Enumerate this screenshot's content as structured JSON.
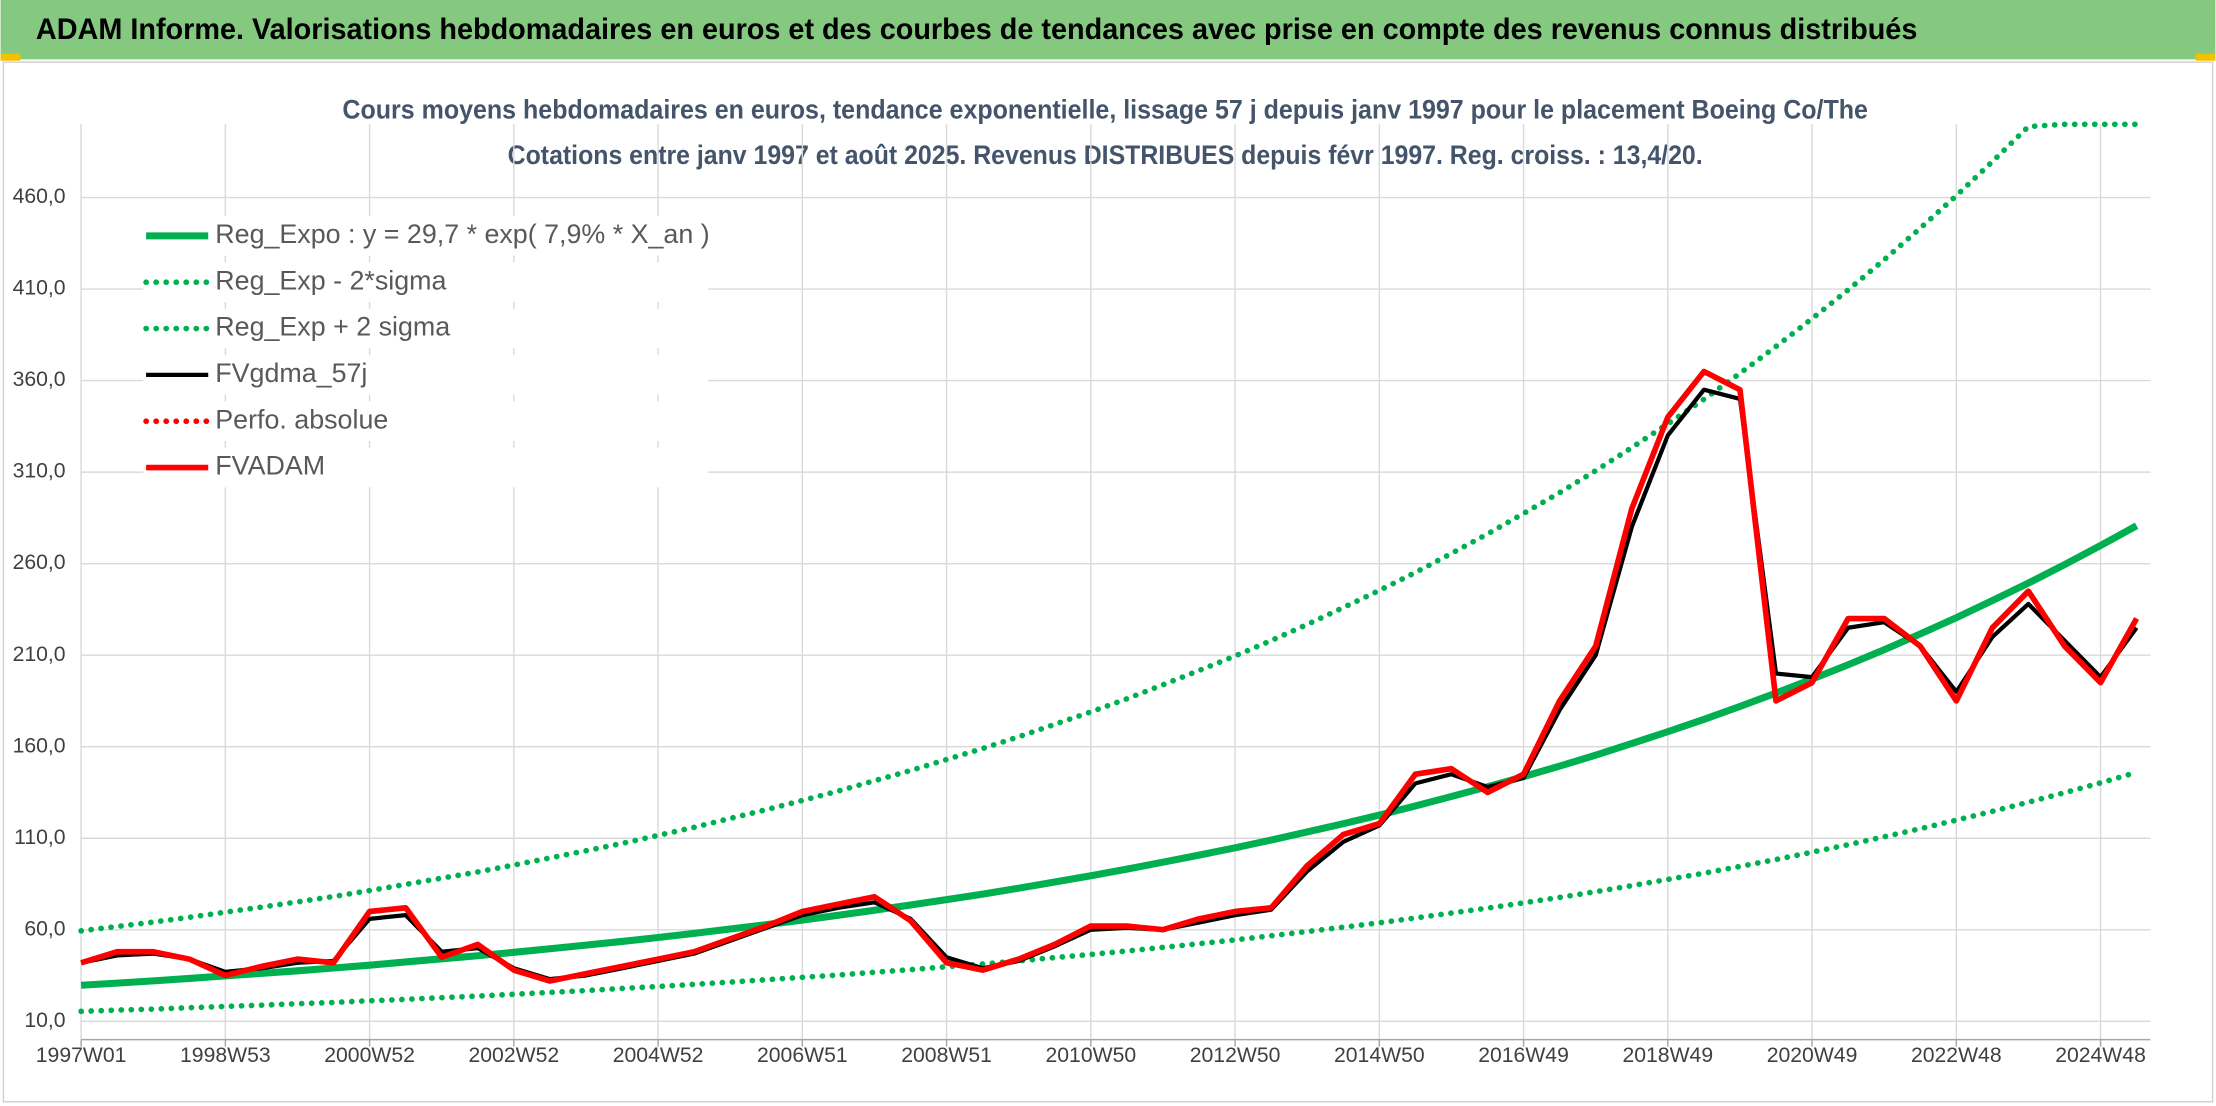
{
  "header": {
    "title": "ADAM Informe. Valorisations hebdomadaires en euros et des courbes de tendances avec prise en compte des revenus connus distribués"
  },
  "chart_data": {
    "type": "line",
    "title": "Cours moyens hebdomadaires en euros, tendance exponentielle, lissage 57 j depuis janv 1997 pour le placement Boeing Co/The",
    "subtitle": "Cotations entre janv 1997 et août 2025. Revenus DISTRIBUES depuis févr 1997. Reg. croiss. : 13,4/20.",
    "categories": [
      "1997W01",
      null,
      null,
      null,
      "1998W53",
      null,
      null,
      null,
      "2000W52",
      null,
      null,
      null,
      "2002W52",
      null,
      null,
      null,
      "2004W52",
      null,
      null,
      null,
      "2006W51",
      null,
      null,
      null,
      "2008W51",
      null,
      null,
      null,
      "2010W50",
      null,
      null,
      null,
      "2012W50",
      null,
      null,
      null,
      "2014W50",
      null,
      null,
      null,
      "2016W49",
      null,
      null,
      null,
      "2018W49",
      null,
      null,
      null,
      "2020W49",
      null,
      null,
      null,
      "2022W48",
      null,
      null,
      null,
      "2024W48",
      null
    ],
    "ylim": [
      0,
      500
    ],
    "yticks": [
      {
        "value": 10,
        "label": "10,0"
      },
      {
        "value": 60,
        "label": "60,0"
      },
      {
        "value": 110,
        "label": "110,0"
      },
      {
        "value": 160,
        "label": "160,0"
      },
      {
        "value": 210,
        "label": "210,0"
      },
      {
        "value": 260,
        "label": "260,0"
      },
      {
        "value": 310,
        "label": "310,0"
      },
      {
        "value": 360,
        "label": "360,0"
      },
      {
        "value": 410,
        "label": "410,0"
      },
      {
        "value": 460,
        "label": "460,0"
      }
    ],
    "grid": true,
    "legend": "upper-left",
    "series": [
      {
        "name": "Reg_Expo : y = 29,7 * exp( 7,9% *  X_an )",
        "color": "#00b050",
        "style": "solid",
        "values": [
          29.7,
          30.9,
          32.1,
          33.4,
          34.8,
          36.2,
          37.6,
          39.1,
          40.7,
          42.4,
          44.1,
          45.8,
          47.7,
          49.6,
          51.6,
          53.6,
          55.8,
          58.0,
          60.4,
          62.8,
          65.3,
          67.9,
          70.7,
          73.5,
          76.5,
          79.5,
          82.7,
          86.1,
          89.5,
          93.1,
          96.9,
          100.8,
          104.8,
          109.0,
          113.4,
          118.0,
          122.7,
          127.6,
          132.8,
          138.1,
          143.7,
          149.4,
          155.4,
          161.7,
          168.2,
          174.9,
          182.0,
          189.3,
          196.9,
          204.8,
          213.0,
          221.6,
          230.5,
          239.8,
          249.4,
          259.5,
          269.9,
          280.7
        ]
      },
      {
        "name": "Reg_Exp - 2*sigma",
        "color": "#00b050",
        "style": "dotted",
        "values": [
          15.4,
          16.1,
          16.7,
          17.4,
          18.1,
          18.8,
          19.6,
          20.3,
          21.2,
          22.0,
          22.9,
          23.8,
          24.8,
          25.8,
          26.8,
          27.9,
          29.0,
          30.2,
          31.4,
          32.7,
          34.0,
          35.3,
          36.8,
          38.2,
          39.8,
          41.3,
          43.0,
          44.8,
          46.5,
          48.4,
          50.4,
          52.4,
          54.5,
          56.7,
          59.0,
          61.4,
          63.8,
          66.4,
          69.1,
          71.8,
          74.7,
          77.7,
          80.8,
          84.1,
          87.5,
          90.9,
          94.6,
          98.4,
          102.4,
          106.5,
          110.8,
          115.2,
          119.9,
          124.7,
          129.7,
          134.9,
          140.3,
          146.0
        ]
      },
      {
        "name": "Reg_Exp + 2 sigma",
        "color": "#00b050",
        "style": "dotted",
        "values": [
          59.4,
          61.8,
          64.2,
          66.8,
          69.6,
          72.4,
          75.2,
          78.2,
          81.4,
          84.8,
          88.2,
          91.6,
          95.4,
          99.2,
          103.2,
          107.2,
          111.6,
          116.0,
          120.8,
          125.6,
          130.6,
          135.8,
          141.4,
          147.0,
          153.0,
          159.0,
          165.4,
          172.2,
          179.0,
          186.2,
          193.8,
          201.6,
          209.6,
          218.0,
          226.8,
          236.0,
          245.4,
          255.2,
          265.6,
          276.2,
          287.4,
          298.8,
          310.8,
          323.4,
          336.4,
          349.8,
          364.0,
          378.6,
          393.8,
          409.6,
          426.0,
          443.2,
          461.0,
          479.6,
          498.8,
          500,
          500,
          500
        ]
      },
      {
        "name": "FVgdma_57j",
        "color": "#000000",
        "style": "solid",
        "values": [
          42,
          46,
          47,
          44,
          37,
          39,
          42,
          43,
          66,
          68,
          48,
          50,
          39,
          33,
          35,
          39,
          43,
          47,
          54,
          61,
          68,
          72,
          75,
          66,
          45,
          39,
          43,
          51,
          60,
          61,
          60,
          64,
          68,
          71,
          92,
          108,
          117,
          140,
          145,
          138,
          143,
          180,
          210,
          280,
          330,
          355,
          350,
          200,
          198,
          225,
          228,
          215,
          190,
          220,
          238,
          218,
          198,
          225
        ]
      },
      {
        "name": "Perfo. absolue",
        "color": "#ff0000",
        "style": "dotted",
        "values": [
          null,
          null,
          null,
          null,
          null,
          null,
          null,
          null,
          null,
          null,
          null,
          null,
          null,
          null,
          null,
          null,
          null,
          null,
          null,
          null,
          null,
          null,
          null,
          null,
          null,
          null,
          null,
          null,
          null,
          null,
          null,
          null,
          null,
          null,
          null,
          null,
          null,
          null,
          null,
          null,
          null,
          null,
          null,
          null,
          null,
          null,
          null,
          null,
          null,
          null,
          null,
          null,
          null,
          null,
          null,
          null,
          null,
          null
        ]
      },
      {
        "name": "FVADAM",
        "color": "#ff0000",
        "style": "solid",
        "values": [
          42,
          48,
          48,
          44,
          35,
          40,
          44,
          42,
          70,
          72,
          45,
          52,
          38,
          32,
          36,
          40,
          44,
          48,
          55,
          62,
          70,
          74,
          78,
          65,
          42,
          38,
          44,
          52,
          62,
          62,
          60,
          66,
          70,
          72,
          95,
          112,
          118,
          145,
          148,
          135,
          145,
          185,
          215,
          290,
          340,
          365,
          355,
          185,
          195,
          230,
          230,
          215,
          185,
          225,
          245,
          215,
          195,
          230
        ]
      }
    ]
  }
}
